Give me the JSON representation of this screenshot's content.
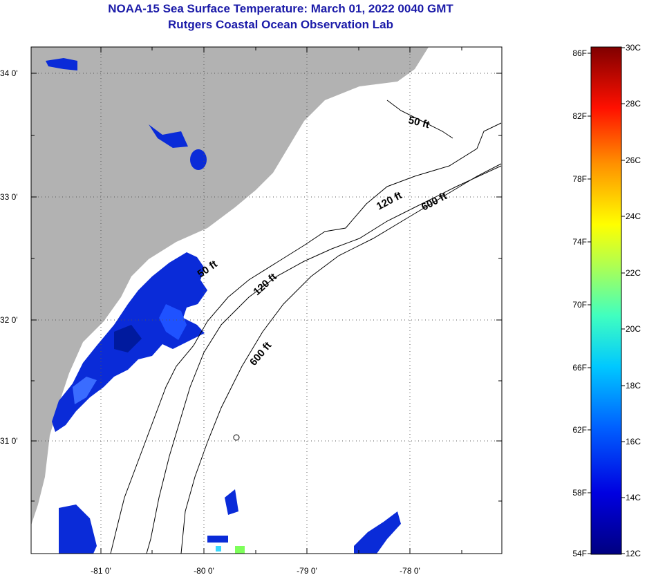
{
  "title": {
    "line1": "NOAA-15 Sea Surface Temperature:  March 01, 2022 0040 GMT",
    "line2": "Rutgers Coastal Ocean Observation Lab"
  },
  "map": {
    "lon_labels": [
      "-81 0'",
      "-80 0'",
      "-79 0'",
      "-78 0'"
    ],
    "lat_labels": [
      "34 0'",
      "33 0'",
      "32 0'",
      "31 0'"
    ],
    "contour_labels": [
      "50 ft",
      "50 ft",
      "120 ft",
      "120 ft",
      "600 ft",
      "600 ft"
    ],
    "land_color": "#b2b2b2",
    "ocean_color": "#ffffff"
  },
  "colorbar": {
    "f_labels": [
      "86F",
      "82F",
      "78F",
      "74F",
      "70F",
      "66F",
      "62F",
      "58F",
      "54F"
    ],
    "c_labels": [
      "30C",
      "28C",
      "26C",
      "24C",
      "22C",
      "20C",
      "18C",
      "16C",
      "14C",
      "12C"
    ]
  }
}
